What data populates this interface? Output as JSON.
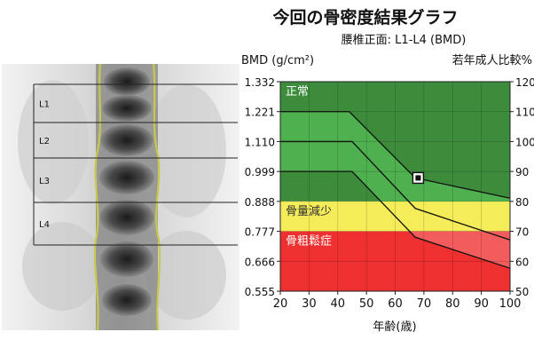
{
  "chart_data": {
    "type": "line",
    "title": "今回の骨密度結果グラフ",
    "subtitle": "腰椎正面: L1-L4 (BMD)",
    "ylabel_left": "BMD (g/cm²)",
    "ylabel_right": "若年成人比較%",
    "xlabel": "年齢(歳)",
    "xlim": [
      20,
      100
    ],
    "ylim": [
      0.555,
      1.332
    ],
    "x_ticks": [
      20,
      30,
      40,
      50,
      60,
      70,
      80,
      90,
      100
    ],
    "y_ticks_left": [
      "0.555",
      "0.666",
      "0.777",
      "0.888",
      "0.999",
      "1.110",
      "1.221",
      "1.332"
    ],
    "y_ticks_right": [
      "50",
      "60",
      "70",
      "80",
      "90",
      "100",
      "110",
      "120"
    ],
    "zones": [
      {
        "label": "正常",
        "from": 0.888,
        "to": 1.332,
        "color": "#3c8c3c"
      },
      {
        "label": "骨量減少",
        "from": 0.777,
        "to": 0.888,
        "color": "#f4ec58"
      },
      {
        "label": "骨粗鬆症",
        "from": 0.555,
        "to": 0.777,
        "color": "#ee3030"
      }
    ],
    "series": [
      {
        "x": [
          20,
          44,
          67,
          100
        ],
        "y": [
          1.221,
          1.221,
          0.975,
          0.9
        ]
      },
      {
        "x": [
          20,
          45,
          67,
          100
        ],
        "y": [
          1.11,
          1.11,
          0.862,
          0.745
        ]
      },
      {
        "x": [
          20,
          45,
          67,
          100
        ],
        "y": [
          0.999,
          0.999,
          0.755,
          0.64
        ]
      }
    ],
    "patient_point": {
      "x": 68,
      "y": 0.975
    },
    "grid": true,
    "legend": "none"
  },
  "scan": {
    "regions": [
      "L1",
      "L2",
      "L3",
      "L4"
    ]
  },
  "colors": {
    "normal_zone": "#3c8c3c",
    "normal_band": "#4fb04f",
    "osteopenia_zone": "#f4ec58",
    "osteoporosis_zone": "#ee3030",
    "osteoporosis_band": "#f25c5c"
  }
}
